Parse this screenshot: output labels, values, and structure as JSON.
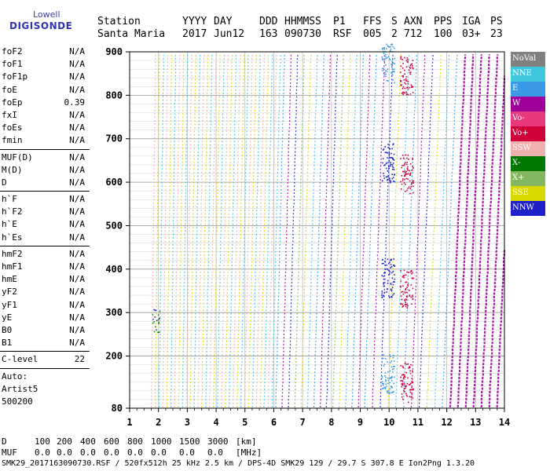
{
  "logo": {
    "line1": "Lowell",
    "line2": "DIGISONDE"
  },
  "header": {
    "labels": [
      "Station",
      "YYYY",
      "DAY",
      "DDD",
      "HHMMSS",
      "P1",
      "FFS",
      "S",
      "AXN",
      "PPS",
      "IGA",
      "PS"
    ],
    "values": [
      "Santa Maria",
      "2017",
      "Jun12",
      "163",
      "090730",
      "RSF",
      "005",
      "2",
      "712",
      "100",
      "03+",
      "23"
    ]
  },
  "params": {
    "group1": [
      {
        "name": "foF2",
        "value": "N/A"
      },
      {
        "name": "foF1",
        "value": "N/A"
      },
      {
        "name": "foF1p",
        "value": "N/A"
      },
      {
        "name": "foE",
        "value": "N/A"
      },
      {
        "name": "foEp",
        "value": "0.39"
      },
      {
        "name": "fxI",
        "value": "N/A"
      },
      {
        "name": "foEs",
        "value": "N/A"
      },
      {
        "name": "fmin",
        "value": "N/A"
      }
    ],
    "group2": [
      {
        "name": "MUF(D)",
        "value": "N/A"
      },
      {
        "name": "M(D)",
        "value": "N/A"
      },
      {
        "name": "D",
        "value": "N/A"
      }
    ],
    "group3": [
      {
        "name": "h`F",
        "value": "N/A"
      },
      {
        "name": "h`F2",
        "value": "N/A"
      },
      {
        "name": "h`E",
        "value": "N/A"
      },
      {
        "name": "h`Es",
        "value": "N/A"
      }
    ],
    "group4": [
      {
        "name": "hmF2",
        "value": "N/A"
      },
      {
        "name": "hmF1",
        "value": "N/A"
      },
      {
        "name": "hmE",
        "value": "N/A"
      },
      {
        "name": "yF2",
        "value": "N/A"
      },
      {
        "name": "yF1",
        "value": "N/A"
      },
      {
        "name": "yE",
        "value": "N/A"
      },
      {
        "name": "B0",
        "value": "N/A"
      },
      {
        "name": "B1",
        "value": "N/A"
      }
    ],
    "group5": [
      {
        "name": "C-level",
        "value": "22"
      }
    ],
    "auto": [
      "Auto:",
      "Artist5",
      "500200"
    ]
  },
  "legend": [
    {
      "label": "NoVal",
      "color": "#808080"
    },
    {
      "label": "NNE",
      "color": "#40c8e0"
    },
    {
      "label": "E",
      "color": "#3a9ae8"
    },
    {
      "label": "W",
      "color": "#a0009a"
    },
    {
      "label": "Vo-",
      "color": "#e8387e"
    },
    {
      "label": "Vo+",
      "color": "#d0003a"
    },
    {
      "label": "SSW",
      "color": "#f0b0b0"
    },
    {
      "label": "X-",
      "color": "#007800"
    },
    {
      "label": "X+",
      "color": "#84b860"
    },
    {
      "label": "SSE",
      "color": "#d8d800"
    },
    {
      "label": "NNW",
      "color": "#2020c8"
    }
  ],
  "bottom": {
    "d_label": "D",
    "d_values": [
      "100",
      "200",
      "400",
      "600",
      "800",
      "1000",
      "1500",
      "3000",
      "[km]"
    ],
    "muf_label": "MUF",
    "muf_values": [
      "0.0",
      "0.0",
      "0.0",
      "0.0",
      "0.0",
      "0.0",
      "0.0",
      "0.0",
      "[MHz]"
    ]
  },
  "footer": "SMK29_2017163090730.RSF / 520fx512h 25 kHz 2.5 km / DPS-4D SMK29 129 / 29.7 S 307.8 E Ion2Png 1.3.20",
  "chart_data": {
    "type": "scatter",
    "xlim": [
      1,
      14
    ],
    "ylim": [
      80,
      900
    ],
    "x_ticks": [
      1,
      2,
      3,
      4,
      5,
      6,
      7,
      8,
      9,
      10,
      11,
      12,
      13,
      14
    ],
    "y_ticks": [
      80,
      200,
      300,
      400,
      500,
      600,
      700,
      800,
      900
    ],
    "grid": true,
    "legend_placement": "right"
  }
}
